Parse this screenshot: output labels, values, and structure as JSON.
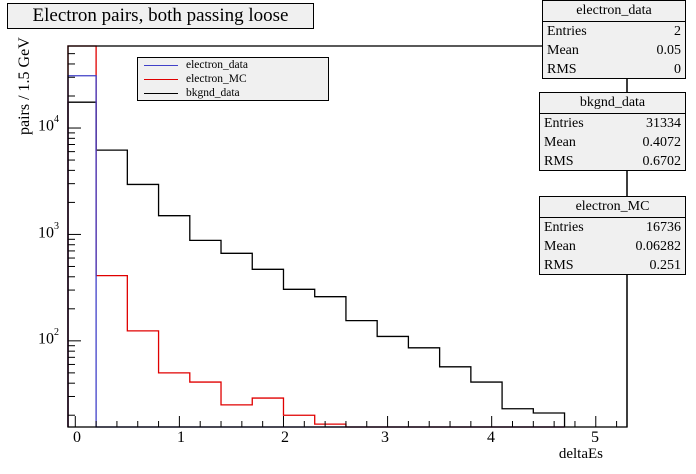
{
  "chart_data": {
    "type": "histogram-step",
    "title": "Electron pairs, both passing loose",
    "xlabel": "deltaEs",
    "ylabel": "pairs / 1.5 GeV",
    "xscale": "linear",
    "yscale": "log",
    "xlim": [
      -0.07,
      5.3
    ],
    "ylim": [
      15.5,
      59000
    ],
    "x_ticks": [
      "0",
      "1",
      "2",
      "3",
      "4",
      "5"
    ],
    "x_tick_values": [
      0,
      1,
      2,
      3,
      4,
      5
    ],
    "y_ticks": [
      {
        "base": "10",
        "exp": "2",
        "value": 100
      },
      {
        "base": "10",
        "exp": "3",
        "value": 1000
      },
      {
        "base": "10",
        "exp": "4",
        "value": 10000
      }
    ],
    "bin_edges": [
      -0.1,
      0.2,
      0.5,
      0.8,
      1.1,
      1.4,
      1.7,
      2.0,
      2.3,
      2.6,
      2.9,
      3.2,
      3.5,
      3.8,
      4.1,
      4.4,
      4.7
    ],
    "legend_position": "top-left",
    "series": [
      {
        "name": "electron_data",
        "color": "#4040c8",
        "values": [
          31000,
          0,
          0,
          0,
          0,
          0,
          0,
          0,
          0,
          0,
          0,
          0,
          0,
          0,
          0,
          0
        ]
      },
      {
        "name": "electron_MC",
        "color": "#e00000",
        "values": [
          60000,
          410,
          124,
          50,
          41,
          25,
          29,
          20,
          16.5,
          0,
          0,
          0,
          0,
          0,
          0,
          0
        ]
      },
      {
        "name": "bkgnd_data",
        "color": "#000000",
        "values": [
          17500,
          6200,
          2950,
          1500,
          880,
          665,
          470,
          305,
          260,
          155,
          110,
          86,
          57,
          41,
          23,
          21
        ]
      }
    ]
  },
  "legend": {
    "items": [
      {
        "label": "electron_data",
        "color": "#4040c8"
      },
      {
        "label": "electron_MC",
        "color": "#e00000"
      },
      {
        "label": "bkgnd_data",
        "color": "#000000"
      }
    ]
  },
  "stats_boxes": [
    {
      "title": "electron_data",
      "rows": [
        {
          "key": "Entries",
          "value": "2"
        },
        {
          "key": "Mean",
          "value": "0.05"
        },
        {
          "key": "RMS",
          "value": "0"
        }
      ]
    },
    {
      "title": "bkgnd_data",
      "rows": [
        {
          "key": "Entries",
          "value": "31334"
        },
        {
          "key": "Mean",
          "value": "0.4072"
        },
        {
          "key": "RMS",
          "value": "0.6702"
        }
      ]
    },
    {
      "title": "electron_MC",
      "rows": [
        {
          "key": "Entries",
          "value": "16736"
        },
        {
          "key": "Mean",
          "value": "0.06282"
        },
        {
          "key": "RMS",
          "value": "0.251"
        }
      ]
    }
  ]
}
